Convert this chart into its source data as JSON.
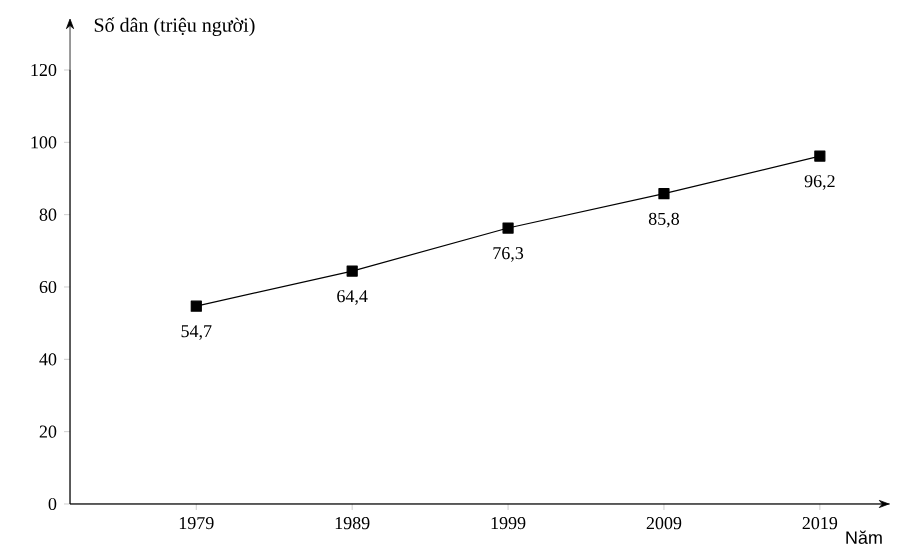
{
  "chart_data": {
    "type": "line",
    "ylabel": "Số dân (triệu người)",
    "xlabel": "Năm",
    "categories": [
      "1979",
      "1989",
      "1999",
      "2009",
      "2019"
    ],
    "series": [
      {
        "color": "#000000",
        "values": [
          54.7,
          64.4,
          76.3,
          85.8,
          96.2
        ],
        "value_labels": [
          "54,7",
          "64,4",
          "76,3",
          "85,8",
          "96,2"
        ]
      }
    ],
    "ylim": [
      0,
      120
    ],
    "yticks": [
      0,
      20,
      40,
      60,
      80,
      100,
      120
    ],
    "marker": "square",
    "line_style": "solid"
  }
}
